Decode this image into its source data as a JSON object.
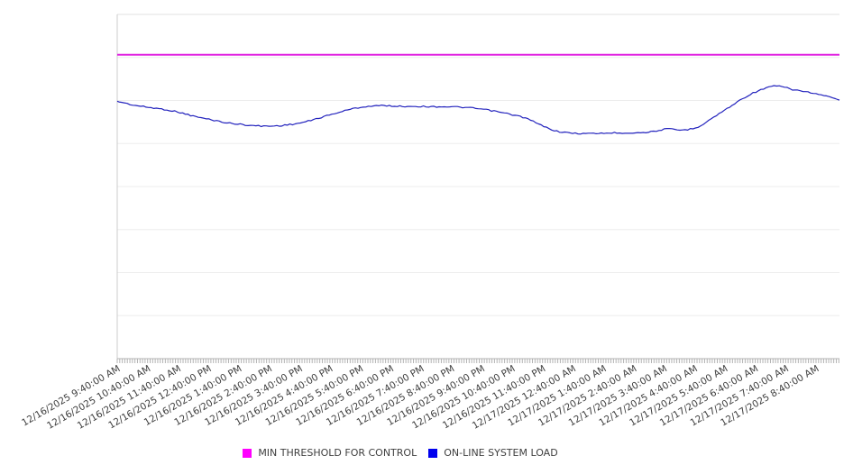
{
  "chart_data": {
    "type": "line",
    "title": "",
    "x_labels": [
      "12/16/2025 9:40:00 AM",
      "12/16/2025 10:40:00 AM",
      "12/16/2025 11:40:00 AM",
      "12/16/2025 12:40:00 PM",
      "12/16/2025 1:40:00 PM",
      "12/16/2025 2:40:00 PM",
      "12/16/2025 3:40:00 PM",
      "12/16/2025 4:40:00 PM",
      "12/16/2025 5:40:00 PM",
      "12/16/2025 6:40:00 PM",
      "12/16/2025 7:40:00 PM",
      "12/16/2025 8:40:00 PM",
      "12/16/2025 9:40:00 PM",
      "12/16/2025 10:40:00 PM",
      "12/16/2025 11:40:00 PM",
      "12/17/2025 12:40:00 AM",
      "12/17/2025 1:40:00 AM",
      "12/17/2025 2:40:00 AM",
      "12/17/2025 3:40:00 AM",
      "12/17/2025 4:40:00 AM",
      "12/17/2025 5:40:00 AM",
      "12/17/2025 6:40:00 AM",
      "12/17/2025 7:40:00 AM",
      "12/17/2025 8:40:00 AM"
    ],
    "minor_ticks_per_hour": 12,
    "y_axis": {
      "labels_visible": false,
      "range": [
        0,
        100
      ]
    },
    "grid": "horizontal",
    "horizontal_grid_bands": 8,
    "legend_position": "bottom-center",
    "series": [
      {
        "name": "MIN THRESHOLD FOR CONTROL",
        "type": "constant",
        "value": 88.3,
        "line_color": "#e122e1",
        "legend_color": "#ff00ff"
      },
      {
        "name": "ON-LINE SYSTEM LOAD",
        "type": "line",
        "sampling": "uniform samples spanning full plot width (~30 min apart)",
        "values": [
          74.8,
          73.7,
          73.0,
          72.4,
          71.5,
          70.3,
          69.4,
          68.5,
          68.0,
          67.6,
          67.6,
          68.0,
          68.8,
          70.1,
          71.4,
          72.6,
          73.3,
          73.5,
          73.3,
          73.3,
          73.2,
          73.2,
          73.0,
          72.6,
          71.9,
          71.0,
          69.9,
          67.8,
          66.1,
          65.5,
          65.4,
          65.5,
          65.6,
          65.6,
          65.9,
          66.7,
          66.4,
          67.4,
          70.2,
          73.1,
          76.0,
          78.1,
          79.2,
          78.2,
          77.4,
          76.4,
          75.1
        ],
        "line_color": "#2222bd",
        "legend_color": "#0000ee"
      }
    ],
    "colors": {
      "grid_line": "#ededed",
      "plot_top_border": "#e0e0e0",
      "left_axis": "#cccccc",
      "bottom_axis": "#b3b3b3",
      "tick": "#b3b3b3",
      "axis_label_text": "#3d3d3d",
      "background": "#ffffff"
    }
  }
}
